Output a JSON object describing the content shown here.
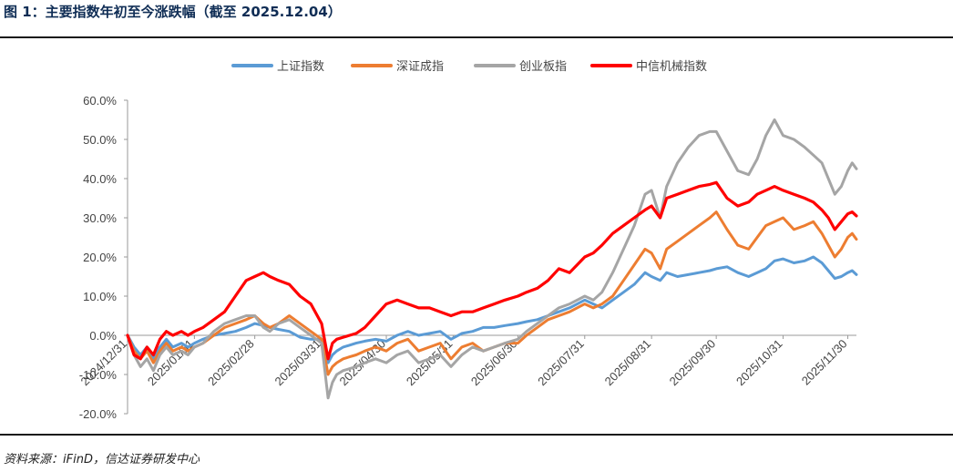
{
  "header": {
    "title": "图 1：主要指数年初至今涨跌幅（截至 2025.12.04）"
  },
  "footer": {
    "source": "资料来源：iFinD，信达证券研发中心"
  },
  "chart_data": {
    "type": "line",
    "title": "主要指数年初至今涨跌幅（截至 2025.12.04）",
    "xlabel": "",
    "ylabel": "",
    "ylim": [
      -20,
      60
    ],
    "y_ticks": [
      "60.0%",
      "50.0%",
      "40.0%",
      "30.0%",
      "20.0%",
      "10.0%",
      "0.0%",
      "-10.0%",
      "-20.0%"
    ],
    "x_ticks": [
      "2024/12/31",
      "2025/01/31",
      "2025/02/28",
      "2025/03/31",
      "2025/04/30",
      "2025/05/31",
      "2025/06/30",
      "2025/07/31",
      "2025/08/31",
      "2025/09/30",
      "2025/10/31",
      "2025/11/30"
    ],
    "x_tick_days": [
      0,
      31,
      59,
      90,
      120,
      151,
      181,
      212,
      243,
      273,
      304,
      334
    ],
    "x_end_day": 338,
    "legend_position": "top",
    "series": [
      {
        "name": "上证指数",
        "color": "#5b9bd5",
        "x": [
          0,
          3,
          6,
          9,
          12,
          15,
          18,
          21,
          25,
          28,
          31,
          35,
          40,
          45,
          50,
          55,
          59,
          63,
          66,
          70,
          75,
          80,
          85,
          90,
          93,
          95,
          97,
          100,
          103,
          106,
          110,
          115,
          120,
          125,
          130,
          135,
          140,
          145,
          150,
          155,
          160,
          165,
          170,
          175,
          181,
          185,
          190,
          195,
          200,
          205,
          212,
          216,
          220,
          225,
          230,
          235,
          240,
          243,
          247,
          250,
          255,
          260,
          265,
          270,
          273,
          278,
          283,
          288,
          292,
          296,
          300,
          304,
          309,
          314,
          318,
          322,
          325,
          328,
          331,
          334,
          336,
          338
        ],
        "values": [
          0,
          -3,
          -5,
          -3,
          -6,
          -3,
          -1,
          -3,
          -2,
          -3,
          -2,
          -1,
          0,
          0.5,
          1,
          2,
          3,
          2.5,
          2,
          1.5,
          1,
          -0.5,
          -1,
          -1,
          -7,
          -5,
          -4,
          -3,
          -2.5,
          -2,
          -1.5,
          -1,
          -1.5,
          0,
          1,
          0,
          0.5,
          1,
          -1,
          0.5,
          1,
          2,
          2,
          2.5,
          3,
          3.5,
          4,
          5,
          6,
          7,
          9,
          8,
          7,
          9,
          11,
          13,
          16,
          15,
          14,
          16,
          15,
          15.5,
          16,
          16.5,
          17,
          17.5,
          16,
          15,
          16,
          17,
          19,
          19.5,
          18.5,
          19,
          20,
          18.5,
          16.5,
          14.5,
          15,
          16,
          16.5,
          15.5
        ]
      },
      {
        "name": "深证成指",
        "color": "#ed7d31",
        "x": [
          0,
          3,
          6,
          9,
          12,
          15,
          18,
          21,
          25,
          28,
          31,
          35,
          40,
          45,
          50,
          55,
          59,
          63,
          66,
          70,
          75,
          80,
          85,
          90,
          93,
          95,
          97,
          100,
          103,
          106,
          110,
          115,
          120,
          125,
          130,
          135,
          140,
          145,
          150,
          155,
          160,
          165,
          170,
          175,
          181,
          185,
          190,
          195,
          200,
          205,
          212,
          216,
          220,
          225,
          230,
          235,
          240,
          243,
          247,
          250,
          255,
          260,
          265,
          270,
          273,
          278,
          283,
          288,
          292,
          296,
          300,
          304,
          309,
          314,
          318,
          322,
          325,
          328,
          331,
          334,
          336,
          338
        ],
        "values": [
          0,
          -4,
          -6,
          -4,
          -7,
          -4,
          -2,
          -4,
          -3,
          -4,
          -3,
          -2,
          0,
          2,
          3,
          4,
          5,
          3,
          2,
          3,
          5,
          3,
          1,
          -1,
          -10,
          -8,
          -7,
          -6,
          -5.5,
          -5,
          -4,
          -3,
          -4,
          -2,
          -1,
          -4,
          -3,
          -2,
          -6,
          -3,
          -2,
          -4,
          -3,
          -2,
          -2,
          0,
          2,
          4,
          5,
          6,
          8,
          7,
          8,
          10,
          14,
          18,
          22,
          21,
          17,
          22,
          24,
          26,
          28,
          30,
          31.5,
          27,
          23,
          22,
          25,
          28,
          29,
          30,
          27,
          28,
          29,
          26,
          23,
          20,
          22,
          25,
          26,
          24.5
        ]
      },
      {
        "name": "创业板指",
        "color": "#a5a5a5",
        "x": [
          0,
          3,
          6,
          9,
          12,
          15,
          18,
          21,
          25,
          28,
          31,
          35,
          40,
          45,
          50,
          55,
          59,
          63,
          66,
          70,
          75,
          80,
          85,
          90,
          93,
          95,
          97,
          100,
          103,
          106,
          110,
          115,
          120,
          125,
          130,
          135,
          140,
          145,
          150,
          155,
          160,
          165,
          170,
          175,
          181,
          185,
          190,
          195,
          200,
          205,
          212,
          216,
          220,
          225,
          230,
          235,
          240,
          243,
          247,
          250,
          255,
          260,
          265,
          270,
          273,
          278,
          283,
          288,
          292,
          296,
          300,
          304,
          309,
          314,
          318,
          322,
          325,
          328,
          331,
          334,
          336,
          338
        ],
        "values": [
          0,
          -5,
          -8,
          -6,
          -9,
          -5,
          -3,
          -5,
          -4,
          -5,
          -3,
          -2,
          1,
          3,
          4,
          5,
          5,
          2,
          1,
          3,
          4,
          2,
          0,
          -2,
          -16,
          -12,
          -10,
          -9,
          -8.5,
          -8,
          -7,
          -6,
          -7,
          -5,
          -4,
          -7,
          -6,
          -5,
          -8,
          -5,
          -3,
          -4,
          -3,
          -2,
          -1,
          1,
          3,
          5,
          7,
          8,
          10,
          9,
          11,
          16,
          22,
          28,
          36,
          37,
          30,
          38,
          44,
          48,
          51,
          52,
          52,
          47,
          42,
          41,
          45,
          51,
          55,
          51,
          50,
          48,
          46,
          44,
          40,
          36,
          38,
          42,
          44,
          42.5
        ]
      },
      {
        "name": "中信机械指数",
        "color": "#ff0000",
        "x": [
          0,
          3,
          6,
          9,
          12,
          15,
          18,
          21,
          25,
          28,
          31,
          35,
          40,
          45,
          50,
          55,
          59,
          63,
          66,
          70,
          75,
          80,
          85,
          90,
          93,
          95,
          97,
          100,
          103,
          106,
          110,
          115,
          120,
          125,
          130,
          135,
          140,
          145,
          150,
          155,
          160,
          165,
          170,
          175,
          181,
          185,
          190,
          195,
          200,
          205,
          212,
          216,
          220,
          225,
          230,
          235,
          240,
          243,
          247,
          250,
          255,
          260,
          265,
          270,
          273,
          278,
          283,
          288,
          292,
          296,
          300,
          304,
          309,
          314,
          318,
          322,
          325,
          328,
          331,
          334,
          336,
          338
        ],
        "values": [
          0,
          -5,
          -6,
          -3,
          -5,
          -1,
          1,
          0,
          1,
          0,
          1,
          2,
          4,
          6,
          10,
          14,
          15,
          16,
          15,
          14,
          13,
          10,
          8,
          3,
          -6,
          -2,
          -1,
          -0.5,
          0,
          0.5,
          2,
          5,
          8,
          9,
          8,
          7,
          7,
          6,
          5,
          6,
          6,
          7,
          8,
          9,
          10,
          11,
          12,
          14,
          17,
          16,
          20,
          21,
          23,
          26,
          28,
          30,
          32,
          33,
          30,
          35,
          36,
          37,
          38,
          38.5,
          39,
          35,
          33,
          34,
          36,
          37,
          38,
          37,
          36,
          35,
          34,
          32,
          30,
          27,
          29,
          31,
          31.5,
          30.5
        ]
      }
    ]
  }
}
